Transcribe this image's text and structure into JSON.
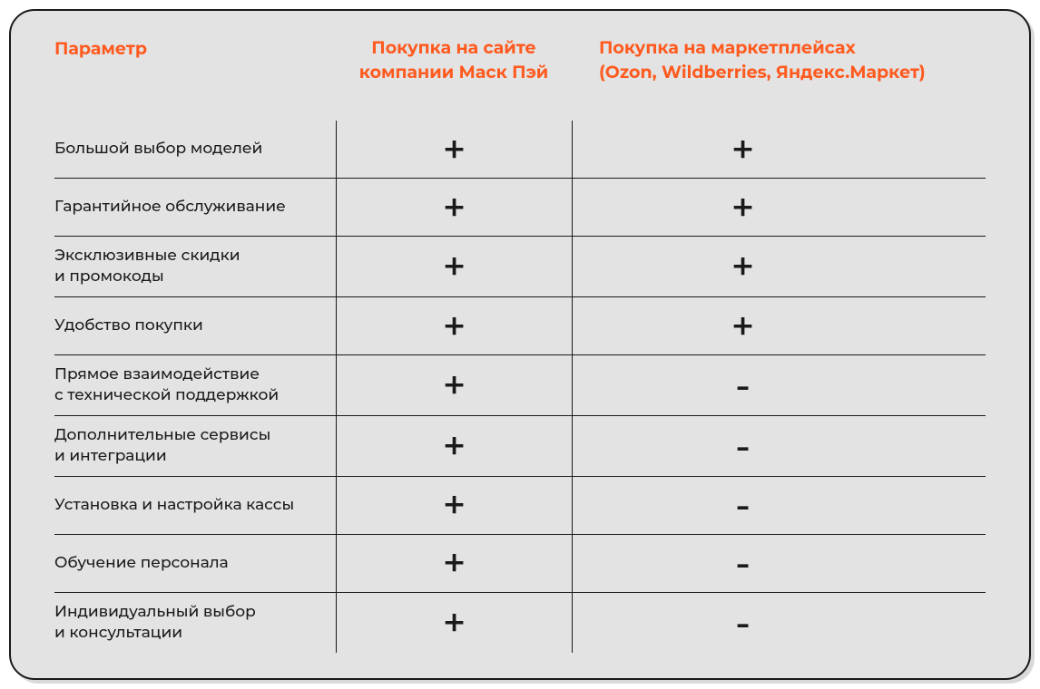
{
  "table": {
    "type": "comparison-table",
    "background_color": "#e3e3e3",
    "border_color": "#1a1a1a",
    "border_radius": 28,
    "accent_color": "#ff5a1f",
    "text_color": "#1a1a1a",
    "header_fontsize": 19,
    "row_fontsize": 17,
    "symbol_fontsize": 44,
    "headers": {
      "param": "Параметр",
      "col1_line1": "Покупка на сайте",
      "col1_line2": "компании Маск Пэй",
      "col2_line1": "Покупка на маркетплейсах",
      "col2_line2": "(Ozon, Wildberries, Яндекс.Маркет)"
    },
    "rows": [
      {
        "param": "Большой выбор моделей",
        "col1": "+",
        "col2": "+"
      },
      {
        "param": "Гарантийное обслуживание",
        "col1": "+",
        "col2": "+"
      },
      {
        "param_line1": "Эксклюзивные скидки",
        "param_line2": "и промокоды",
        "col1": "+",
        "col2": "+"
      },
      {
        "param": "Удобство покупки",
        "col1": "+",
        "col2": "+"
      },
      {
        "param_line1": "Прямое взаимодействие",
        "param_line2": "с технической поддержкой",
        "col1": "+",
        "col2": "-"
      },
      {
        "param_line1": "Дополнительные сервисы",
        "param_line2": "и интеграции",
        "col1": "+",
        "col2": "-"
      },
      {
        "param": "Установка и настройка кассы",
        "col1": "+",
        "col2": "-"
      },
      {
        "param": "Обучение персонала",
        "col1": "+",
        "col2": "-"
      },
      {
        "param_line1": "Индивидуальный выбор",
        "param_line2": "и консультации",
        "col1": "+",
        "col2": "-"
      }
    ]
  }
}
